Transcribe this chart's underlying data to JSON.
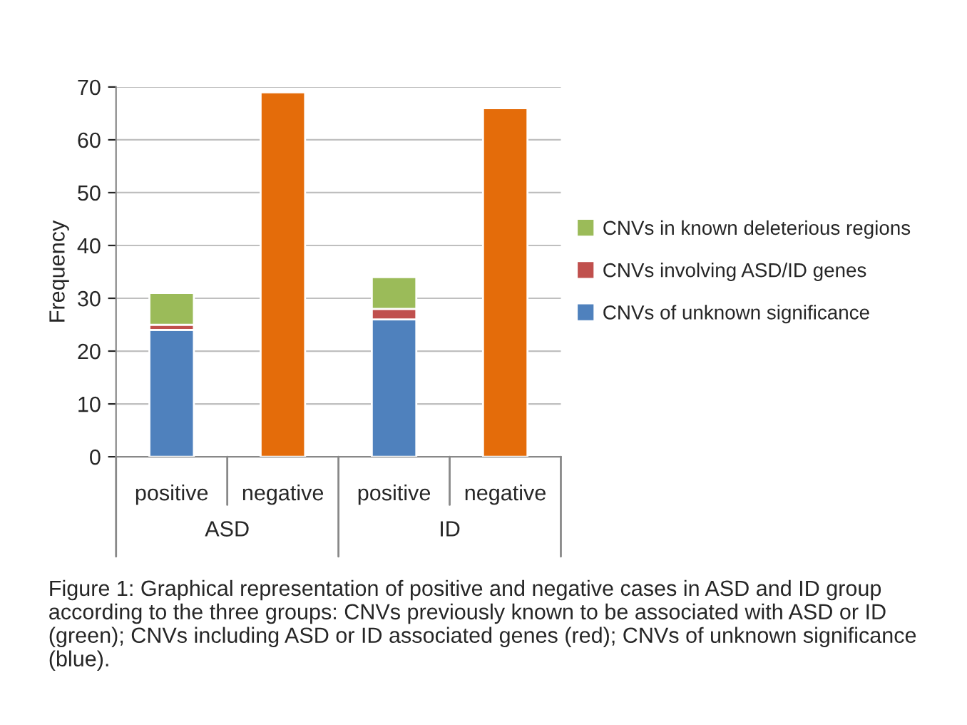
{
  "chart_data": {
    "type": "bar",
    "stacked": true,
    "ylabel": "Frequency",
    "categories": [
      "positive",
      "negative",
      "positive",
      "negative"
    ],
    "series": [
      {
        "name": "CNVs of unknown significance",
        "color": "#4f81bd",
        "values": [
          24,
          null,
          26,
          null
        ]
      },
      {
        "name": "CNVs involving ASD/ID genes",
        "color": "#c0504d",
        "values": [
          1,
          null,
          2,
          null
        ]
      },
      {
        "name": "CNVs in known deleterious regions",
        "color": "#9bbb59",
        "values": [
          6,
          null,
          6,
          null
        ]
      },
      {
        "color": "#e46c0a",
        "values": [
          null,
          69,
          null,
          66
        ]
      }
    ],
    "ylim": [
      0,
      70
    ],
    "yticks": [
      0,
      10,
      20,
      30,
      40,
      50,
      60,
      70
    ],
    "grid": "y",
    "legend": "right",
    "annotations": [
      "ASD",
      "ID",
      "Figure 1: Graphical representation of positive and negative cases in ASD and ID group according to the three groups: CNVs previously known to be associated with ASD or ID (green); CNVs including ASD or ID associated genes (red); CNVs of unknown significance (blue)."
    ]
  }
}
